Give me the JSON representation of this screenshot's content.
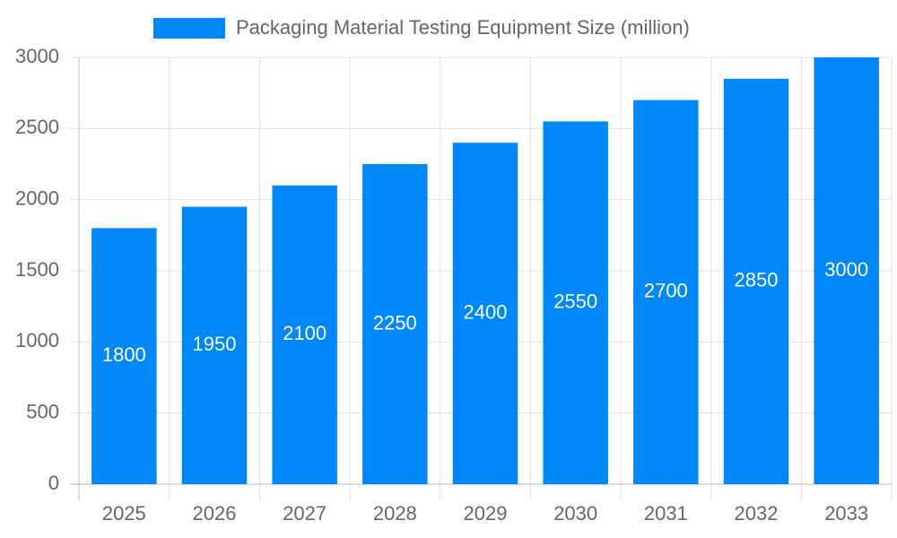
{
  "chart_data": {
    "type": "bar",
    "categories": [
      "2025",
      "2026",
      "2027",
      "2028",
      "2029",
      "2030",
      "2031",
      "2032",
      "2033"
    ],
    "series": [
      {
        "name": "Packaging Material Testing Equipment Size (million)",
        "color": "#0088fa",
        "values": [
          1800,
          1950,
          2100,
          2250,
          2400,
          2550,
          2700,
          2850,
          3000
        ]
      }
    ],
    "ylim": [
      0,
      3000
    ],
    "yticks": [
      0,
      500,
      1000,
      1500,
      2000,
      2500,
      3000
    ],
    "grid": true,
    "legend": "top",
    "data_labels": true
  }
}
